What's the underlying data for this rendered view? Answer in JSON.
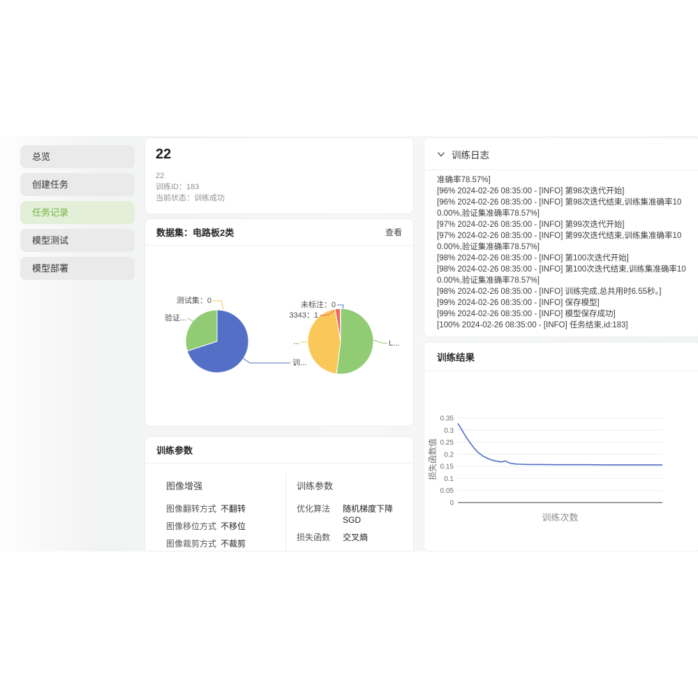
{
  "sidebar": {
    "items": [
      {
        "name": "overview",
        "label": "总览",
        "active": false
      },
      {
        "name": "create-task",
        "label": "创建任务",
        "active": false
      },
      {
        "name": "task-records",
        "label": "任务记录",
        "active": true
      },
      {
        "name": "model-test",
        "label": "模型测试",
        "active": false
      },
      {
        "name": "model-deploy",
        "label": "模型部署",
        "active": false
      }
    ],
    "active_color": "#74b33c"
  },
  "task_card": {
    "title": "22",
    "meta": [
      "22",
      "训练ID：183",
      "当前状态：训练成功"
    ]
  },
  "dataset_card": {
    "title": "数据集：电路板2类",
    "view_label": "查看"
  },
  "params_card": {
    "title": "训练参数",
    "groups": [
      {
        "title": "图像增强",
        "rows": [
          {
            "label": "图像翻转方式",
            "value": "不翻转"
          },
          {
            "label": "图像移位方式",
            "value": "不移位"
          },
          {
            "label": "图像裁剪方式",
            "value": "不裁剪"
          }
        ]
      },
      {
        "title": "训练参数",
        "rows": [
          {
            "label": "优化算法",
            "value": "随机梯度下降 SGD"
          },
          {
            "label": "损失函数",
            "value": "交叉熵"
          }
        ]
      }
    ]
  },
  "log_panel": {
    "title": "训练日志",
    "lines": [
      "准确率78.57%]",
      "[96% 2024-02-26 08:35:00 - [INFO] 第98次迭代开始]",
      "[96% 2024-02-26 08:35:00 - [INFO] 第98次迭代结束,训练集准确率100.00%,验证集准确率78.57%]",
      "[97% 2024-02-26 08:35:00 - [INFO] 第99次迭代开始]",
      "[97% 2024-02-26 08:35:00 - [INFO] 第99次迭代结束,训练集准确率100.00%,验证集准确率78.57%]",
      "[98% 2024-02-26 08:35:00 - [INFO] 第100次迭代开始]",
      "[98% 2024-02-26 08:35:00 - [INFO] 第100次迭代结束,训练集准确率100.00%,验证集准确率78.57%]",
      "[98% 2024-02-26 08:35:00 - [INFO] 训练完成,总共用时6.55秒。]",
      "[99% 2024-02-26 08:35:00 - [INFO] 保存模型]",
      "[99% 2024-02-26 08:35:00 - [INFO] 模型保存成功]",
      "[100% 2024-02-26 08:35:00 - [INFO] 任务结束,id:183]"
    ]
  },
  "result_panel": {
    "title": "训练结果"
  },
  "chart_data": [
    {
      "id": "dataset-split-pie",
      "type": "pie",
      "title": "数据集划分",
      "slices": [
        {
          "label": "训练集",
          "visible_label": "训...",
          "pct": 70,
          "color": "#5470c6"
        },
        {
          "label": "验证集",
          "visible_label": "验证...",
          "pct": 30,
          "color": "#91cc75"
        },
        {
          "label": "测试集",
          "visible_label": "测试集：0",
          "pct": 0,
          "value": 0,
          "color": "#fac858"
        }
      ]
    },
    {
      "id": "label-distribution-pie",
      "type": "pie",
      "title": "标注分布",
      "slices": [
        {
          "label": "L...",
          "visible_label": "L...",
          "pct": 52,
          "color": "#91cc75"
        },
        {
          "label": "...",
          "visible_label": "...",
          "pct": 45.3,
          "color": "#fac858"
        },
        {
          "label": "3343",
          "visible_label": "3343：1",
          "pct": 2.5,
          "value": 1,
          "color": "#ee6666"
        },
        {
          "label": "未标注",
          "visible_label": "未标注：0",
          "pct": 0.2,
          "value": 0,
          "color": "#5470c6"
        }
      ]
    },
    {
      "id": "loss-curve",
      "type": "line",
      "xlabel": "训练次数",
      "ylabel": "损失函数值",
      "ylim": [
        0,
        0.35
      ],
      "yticks": [
        0,
        0.05,
        0.1,
        0.15,
        0.2,
        0.25,
        0.3,
        0.35
      ],
      "grid": true,
      "line_color": "#4f6cc4",
      "points": [
        [
          0,
          0.328
        ],
        [
          2,
          0.3
        ],
        [
          4,
          0.272
        ],
        [
          6,
          0.247
        ],
        [
          8,
          0.225
        ],
        [
          10,
          0.207
        ],
        [
          12,
          0.194
        ],
        [
          14,
          0.185
        ],
        [
          16,
          0.178
        ],
        [
          18,
          0.173
        ],
        [
          20,
          0.17
        ],
        [
          21.5,
          0.168
        ],
        [
          23,
          0.173
        ],
        [
          24.5,
          0.167
        ],
        [
          26,
          0.162
        ],
        [
          28,
          0.16
        ],
        [
          30,
          0.159
        ],
        [
          34,
          0.158
        ],
        [
          40,
          0.158
        ],
        [
          48,
          0.157
        ],
        [
          56,
          0.157
        ],
        [
          64,
          0.157
        ],
        [
          72,
          0.156
        ],
        [
          80,
          0.156
        ],
        [
          90,
          0.156
        ],
        [
          100,
          0.156
        ]
      ]
    }
  ]
}
